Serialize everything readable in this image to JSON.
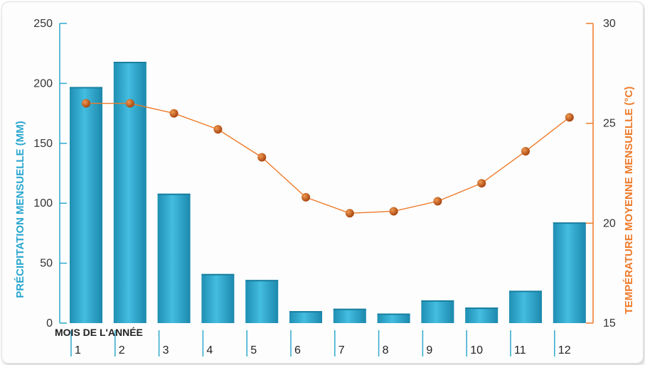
{
  "chart_data": {
    "type": "bar+line",
    "categories": [
      "1",
      "2",
      "3",
      "4",
      "5",
      "6",
      "7",
      "8",
      "9",
      "10",
      "11",
      "12"
    ],
    "xlabel": "MOIS DE L'ANNÉE",
    "ylabel_left": "PRÉCIPITATION MENSUELLE (MM)",
    "ylabel_right": "TEMPÉRATURE MOYENNE MENSUELLE (°C)",
    "ylim_left": [
      0,
      250
    ],
    "yticks_left": [
      0,
      50,
      100,
      150,
      200,
      250
    ],
    "ylim_right": [
      15,
      30
    ],
    "yticks_right": [
      15,
      20,
      25,
      30
    ],
    "grid": false,
    "series": [
      {
        "name": "Précipitation mensuelle",
        "type": "bar",
        "axis": "left",
        "color": "#2ea9cc",
        "values": [
          197,
          218,
          108,
          41,
          36,
          10,
          12,
          8,
          19,
          13,
          27,
          84
        ]
      },
      {
        "name": "Température moyenne mensuelle",
        "type": "line",
        "axis": "right",
        "color": "#ee7a2a",
        "marker_color": "#b84a0e",
        "values": [
          26.0,
          26.0,
          25.5,
          24.7,
          23.3,
          21.3,
          20.5,
          20.6,
          21.1,
          22.0,
          23.6,
          25.3
        ]
      }
    ]
  }
}
